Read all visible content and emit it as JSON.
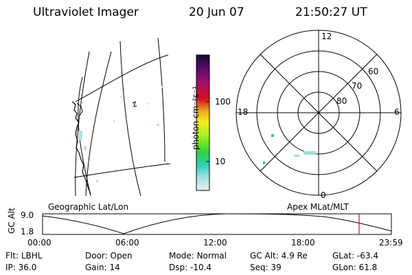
{
  "header": {
    "title": "Ultraviolet Imager",
    "date": "20 Jun 07",
    "time": "21:50:27 UT"
  },
  "colorbar": {
    "unit_label": "photon cm⁻²s⁻¹",
    "ticks": [
      "100",
      "10"
    ],
    "colors": [
      "#1a0a2e",
      "#5a0a6a",
      "#a0106a",
      "#d01020",
      "#f0b020",
      "#f0f020",
      "#a0f020",
      "#30d040",
      "#30d0c0",
      "#a0e0e0",
      "#e8f0f0"
    ]
  },
  "geo_panel": {
    "label": "Geographic Lat/Lon"
  },
  "polar_panel": {
    "label": "Apex MLat/MLT",
    "mlt_labels": {
      "top": "12",
      "left": "18",
      "right": "6",
      "bottom": "0"
    },
    "lat_labels": [
      "60",
      "70",
      "80"
    ]
  },
  "altitude_strip": {
    "axis_label": "GC Alt",
    "y_ticks": [
      "9.0",
      "1.8"
    ],
    "time_ticks": [
      "00:00",
      "06:00",
      "12:00",
      "18:00",
      "23:59"
    ],
    "marker_color": "#d01020"
  },
  "status": {
    "row1": [
      {
        "label": "Flt:",
        "value": "LBHL"
      },
      {
        "label": "Door:",
        "value": "Open"
      },
      {
        "label": "Mode:",
        "value": "Normal"
      },
      {
        "label": "GC Alt:",
        "value": "4.9 Re"
      },
      {
        "label": "GLat:",
        "value": "-63.4"
      }
    ],
    "row2": [
      {
        "label": "IP:",
        "value": "36.0"
      },
      {
        "label": "Gain:",
        "value": "14"
      },
      {
        "label": "Dsp:",
        "value": "-10.4"
      },
      {
        "label": "Seq:",
        "value": "39"
      },
      {
        "label": "GLon:",
        "value": "61.8"
      }
    ]
  }
}
